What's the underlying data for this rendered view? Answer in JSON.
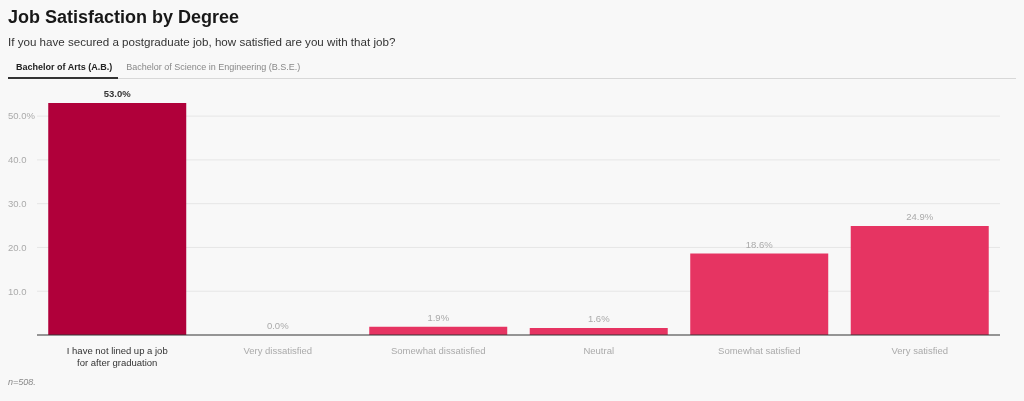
{
  "chart_data": {
    "type": "bar",
    "title": "Job Satisfaction by Degree",
    "subtitle": "If you have secured a postgraduate job, how satisfied are you with that job?",
    "categories": [
      "I have not lined up a job for after graduation",
      "Very dissatisfied",
      "Somewhat dissatisfied",
      "Neutral",
      "Somewhat satisfied",
      "Very satisfied"
    ],
    "values": [
      53.0,
      0.0,
      1.9,
      1.6,
      18.6,
      24.9
    ],
    "colors": [
      "#b0003a",
      "#e63462",
      "#e63462",
      "#e63462",
      "#e63462",
      "#e63462"
    ],
    "value_labels": [
      "53.0%",
      "0.0%",
      "1.9%",
      "1.6%",
      "18.6%",
      "24.9%"
    ],
    "ylim": [
      0,
      53
    ],
    "yticks": [
      {
        "value": 10,
        "label": "10.0"
      },
      {
        "value": 20,
        "label": "20.0"
      },
      {
        "value": 30,
        "label": "30.0"
      },
      {
        "value": 40,
        "label": "40.0"
      },
      {
        "value": 50,
        "label": "50.0%"
      }
    ],
    "grid": "y",
    "annotations": [
      "Bachelor of Arts (A.B.)",
      "Bachelor of Science in Engineering (B.S.E.)",
      "n=508."
    ]
  }
}
